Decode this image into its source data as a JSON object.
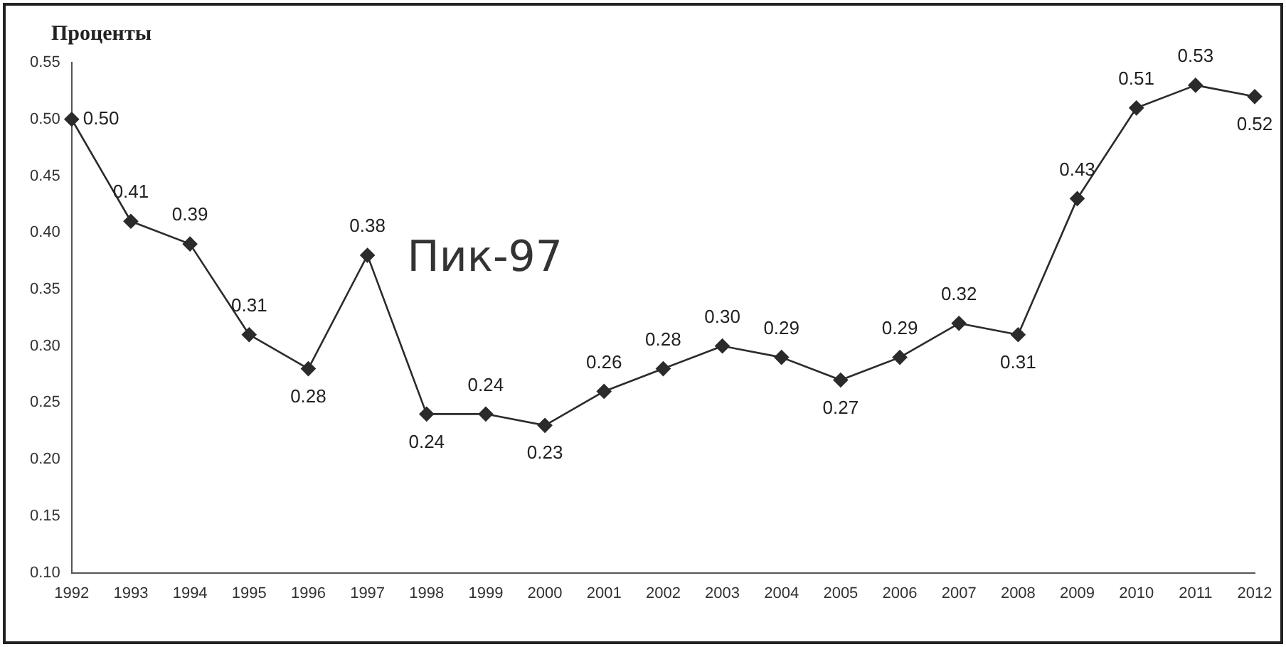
{
  "chart_data": {
    "type": "line",
    "title": "Проценты",
    "categories": [
      "1992",
      "1993",
      "1994",
      "1995",
      "1996",
      "1997",
      "1998",
      "1999",
      "2000",
      "2001",
      "2002",
      "2003",
      "2004",
      "2005",
      "2006",
      "2007",
      "2008",
      "2009",
      "2010",
      "2011",
      "2012"
    ],
    "series": [
      {
        "color": "#2b2b2b",
        "values": [
          0.5,
          0.41,
          0.39,
          0.31,
          0.28,
          0.38,
          0.24,
          0.24,
          0.23,
          0.26,
          0.28,
          0.3,
          0.29,
          0.27,
          0.29,
          0.32,
          0.31,
          0.43,
          0.51,
          0.53,
          0.52
        ],
        "value_labels": [
          "0.50",
          "0.41",
          "0.39",
          "0.31",
          "0.28",
          "0.38",
          "0.24",
          "0.24",
          "0.23",
          "0.26",
          "0.28",
          "0.30",
          "0.29",
          "0.27",
          "0.29",
          "0.32",
          "0.31",
          "0.43",
          "0.51",
          "0.53",
          "0.52"
        ]
      }
    ],
    "ylim": [
      0.1,
      0.55
    ],
    "yticks": [
      {
        "value": 0.1,
        "label": "0.10"
      },
      {
        "value": 0.15,
        "label": "0.15"
      },
      {
        "value": 0.2,
        "label": "0.20"
      },
      {
        "value": 0.25,
        "label": "0.25"
      },
      {
        "value": 0.3,
        "label": "0.30"
      },
      {
        "value": 0.35,
        "label": "0.35"
      },
      {
        "value": 0.4,
        "label": "0.40"
      },
      {
        "value": 0.45,
        "label": "0.45"
      },
      {
        "value": 0.5,
        "label": "0.50"
      },
      {
        "value": 0.55,
        "label": "0.55"
      }
    ],
    "annotations": [
      {
        "text": "Пик-97",
        "x": "1997",
        "y": 0.38
      }
    ],
    "grid": false,
    "legend": false,
    "marker": "diamond",
    "line_style": "solid"
  }
}
